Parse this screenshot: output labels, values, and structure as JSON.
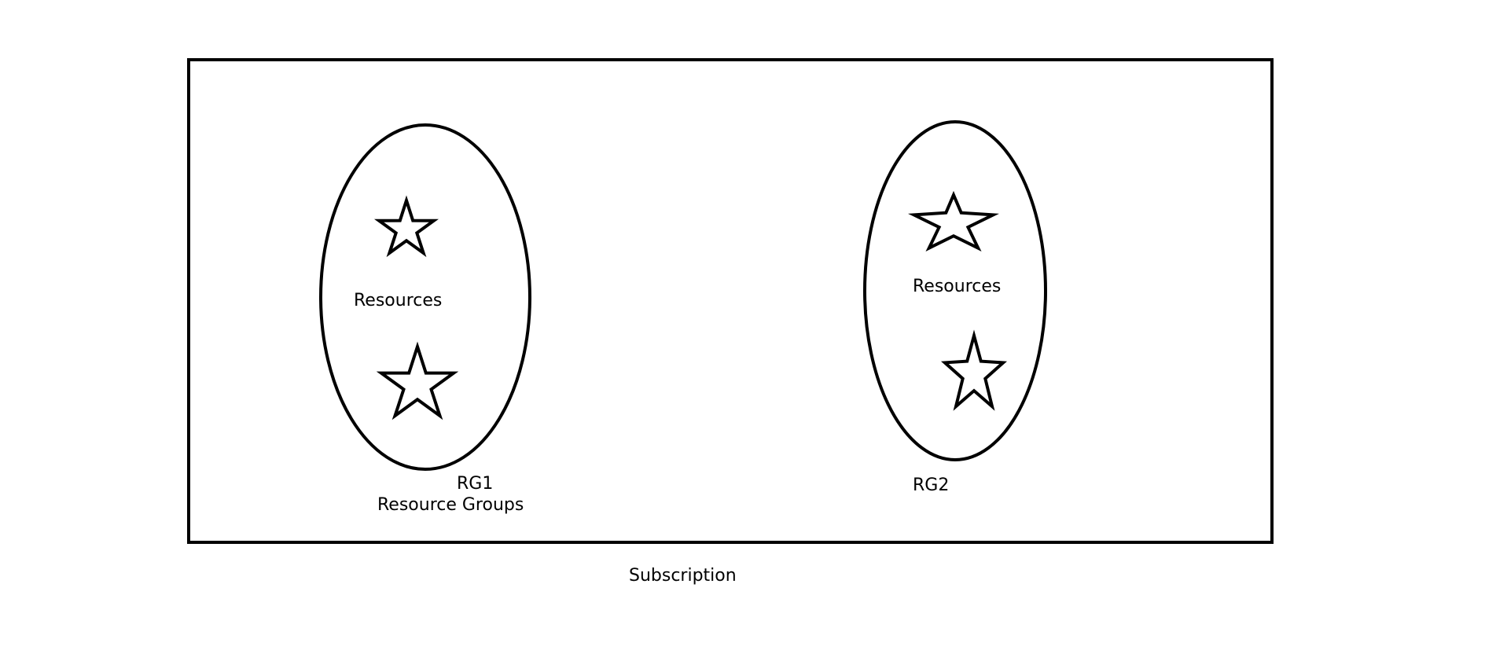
{
  "diagram": {
    "colors": {
      "stroke": "#000000",
      "text": "#000000",
      "background": "#ffffff"
    },
    "subscription": {
      "label": "Subscription"
    },
    "groups": [
      {
        "name": "RG1",
        "caption": "Resource Groups",
        "resources_label": "Resources",
        "resource_icons": [
          "star-icon",
          "star-icon"
        ]
      },
      {
        "name": "RG2",
        "resources_label": "Resources",
        "resource_icons": [
          "star-icon",
          "star-icon"
        ]
      }
    ]
  }
}
